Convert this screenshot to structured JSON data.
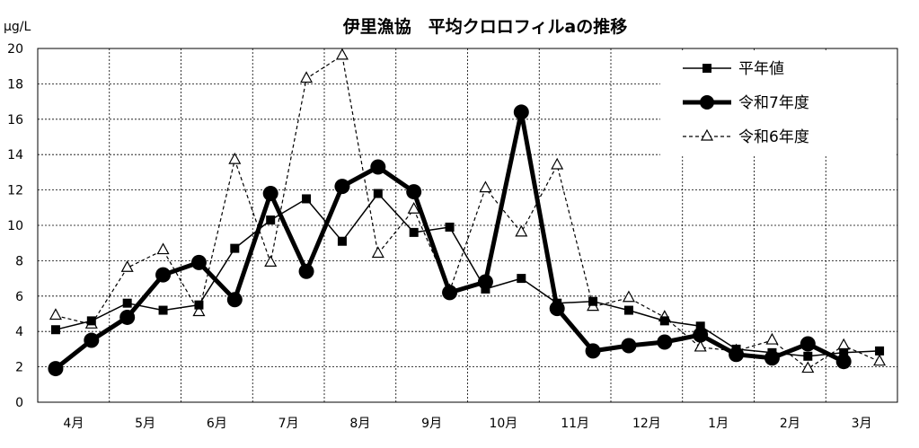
{
  "chart_data": {
    "type": "line",
    "title": "伊里漁協　平均クロロフィルaの推移",
    "ylabel": "μg/L",
    "xlabel": "",
    "ylim": [
      0,
      20
    ],
    "yticks": [
      0,
      2,
      4,
      6,
      8,
      10,
      12,
      14,
      16,
      18,
      20
    ],
    "categories": [
      "4月",
      "5月",
      "6月",
      "7月",
      "8月",
      "9月",
      "10月",
      "11月",
      "12月",
      "1月",
      "2月",
      "3月"
    ],
    "grid": true,
    "legend_position": "top-right",
    "series": [
      {
        "name": "平年値",
        "style": "thin-solid",
        "marker": "square",
        "color": "#000000",
        "x": [
          0.25,
          0.75,
          1.25,
          1.75,
          2.25,
          2.75,
          3.25,
          3.75,
          4.25,
          4.75,
          5.25,
          5.75,
          6.25,
          6.75,
          7.25,
          7.75,
          8.25,
          8.75,
          9.25,
          9.75,
          10.25,
          10.75,
          11.25,
          11.75
        ],
        "values": [
          4.1,
          4.6,
          5.6,
          5.2,
          5.5,
          8.7,
          10.3,
          11.5,
          9.1,
          11.8,
          9.6,
          9.9,
          6.4,
          7.0,
          5.6,
          5.7,
          5.2,
          4.6,
          4.3,
          3.0,
          2.8,
          2.6,
          2.8,
          2.9
        ]
      },
      {
        "name": "令和7年度",
        "style": "thick-solid",
        "marker": "circle",
        "color": "#000000",
        "x": [
          0.25,
          0.75,
          1.25,
          1.75,
          2.25,
          2.75,
          3.25,
          3.75,
          4.25,
          4.75,
          5.25,
          5.75,
          6.25,
          6.75,
          7.25,
          7.75,
          8.25,
          8.75,
          9.25,
          9.75,
          10.25,
          10.75,
          11.25
        ],
        "values": [
          1.9,
          3.5,
          4.8,
          7.2,
          7.9,
          5.8,
          11.8,
          7.4,
          12.2,
          13.3,
          11.9,
          6.2,
          6.8,
          16.4,
          5.3,
          2.9,
          3.2,
          3.4,
          3.8,
          2.7,
          2.5,
          3.3,
          2.3
        ]
      },
      {
        "name": "令和6年度",
        "style": "thin-dashed",
        "marker": "open-triangle",
        "color": "#000000",
        "x": [
          0.25,
          0.75,
          1.25,
          1.75,
          2.25,
          2.75,
          3.25,
          3.75,
          4.25,
          4.75,
          5.25,
          5.75,
          6.25,
          6.75,
          7.25,
          7.75,
          8.25,
          8.75,
          9.25,
          9.75,
          10.25,
          10.75,
          11.25,
          11.75
        ],
        "values": [
          4.9,
          4.4,
          7.6,
          8.6,
          5.1,
          13.7,
          7.9,
          18.3,
          19.6,
          8.4,
          10.9,
          6.3,
          12.1,
          9.6,
          13.4,
          5.4,
          5.9,
          4.8,
          3.1,
          2.9,
          3.5,
          1.9,
          3.2,
          2.3
        ]
      }
    ]
  }
}
